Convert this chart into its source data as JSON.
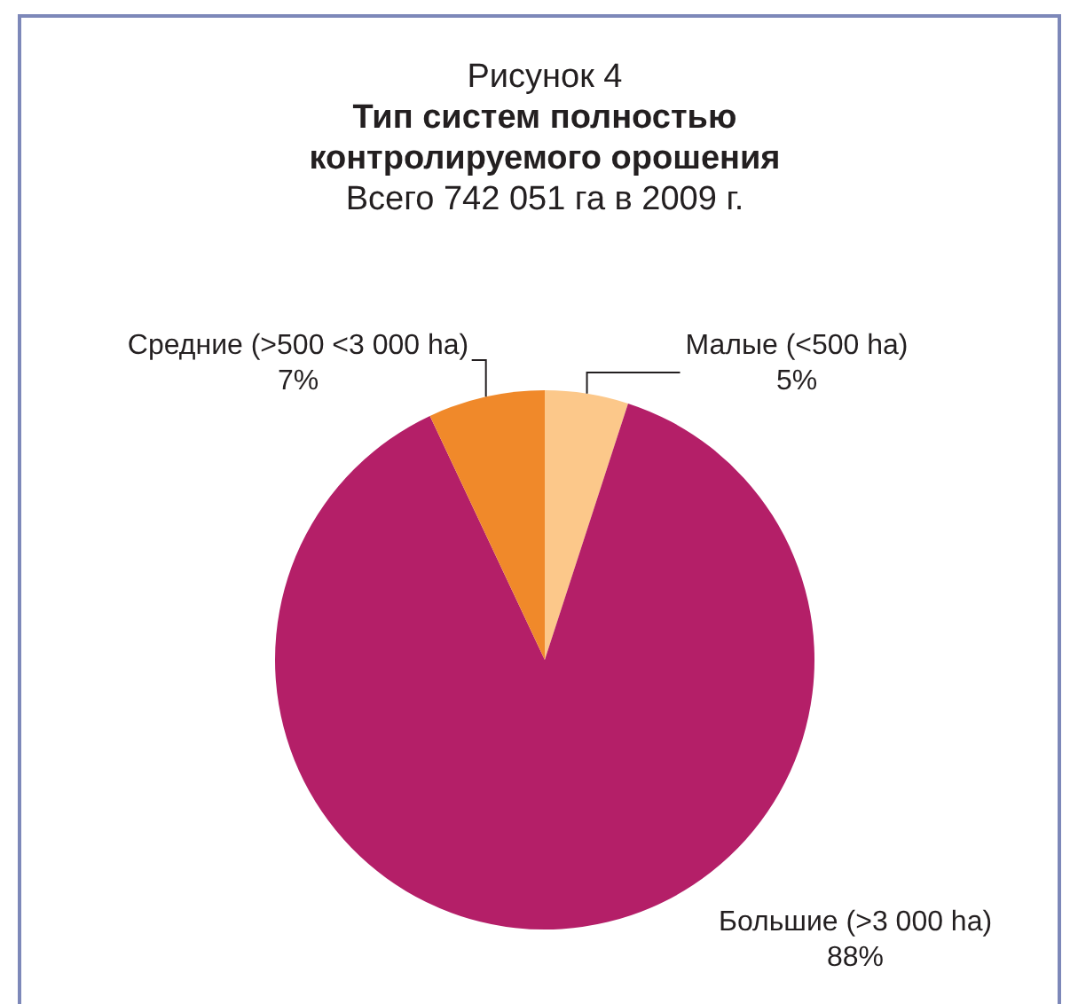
{
  "chart_data": {
    "type": "pie",
    "annotations": [
      "Рисунок 4"
    ],
    "title": "Тип систем полностью контролируемого орошения",
    "subtitle": "Всего 742 051 га в 2009 г.",
    "categories": [
      "Малые (<500 ha)",
      "Большие (>3 000 ha)",
      "Средние (>500 <3 000 ha)"
    ],
    "values": [
      5,
      88,
      7
    ],
    "value_labels": [
      "5%",
      "88%",
      "7%"
    ],
    "colors": [
      "#fcc88a",
      "#b41f68",
      "#f0892a"
    ],
    "legend": false
  }
}
